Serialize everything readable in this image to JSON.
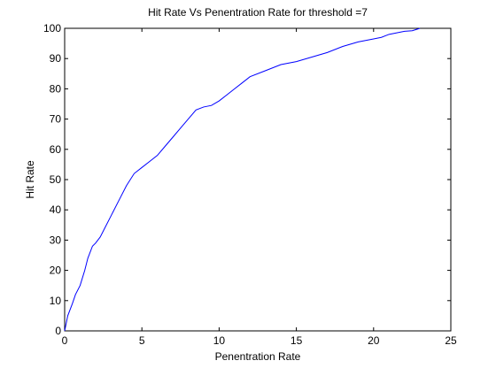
{
  "chart_data": {
    "type": "line",
    "title": "Hit Rate Vs Penentration Rate for threshold =7",
    "xlabel": "Penentration Rate",
    "ylabel": "Hit Rate",
    "xlim": [
      0,
      25
    ],
    "ylim": [
      0,
      100
    ],
    "xticks": [
      0,
      5,
      10,
      15,
      20,
      25
    ],
    "yticks": [
      0,
      10,
      20,
      30,
      40,
      50,
      60,
      70,
      80,
      90,
      100
    ],
    "xtick_labels": [
      "0",
      "5",
      "10",
      "15",
      "20",
      "25"
    ],
    "ytick_labels": [
      "0",
      "10",
      "20",
      "30",
      "40",
      "50",
      "60",
      "70",
      "80",
      "90",
      "100"
    ],
    "grid": false,
    "legend": "none",
    "line_color": "#0000ff",
    "x": [
      0,
      0.2,
      0.5,
      0.7,
      1.0,
      1.3,
      1.5,
      1.8,
      2.0,
      2.3,
      2.5,
      3.0,
      3.5,
      4.0,
      4.5,
      5.0,
      5.5,
      6.0,
      6.5,
      7.0,
      7.5,
      8.0,
      8.5,
      9.0,
      9.5,
      10.0,
      10.5,
      11.0,
      11.5,
      12.0,
      13.0,
      14.0,
      15.0,
      16.0,
      17.0,
      18.0,
      19.0,
      20.0,
      20.5,
      21.0,
      22.0,
      22.5,
      23.0
    ],
    "y": [
      0,
      5,
      9,
      12,
      15,
      20,
      24,
      28,
      29,
      31,
      33,
      38,
      43,
      48,
      52,
      54,
      56,
      58,
      61,
      64,
      67,
      70,
      73,
      74,
      74.5,
      76,
      78,
      80,
      82,
      84,
      86,
      88,
      89,
      90.5,
      92,
      94,
      95.5,
      96.5,
      97,
      98,
      99,
      99.2,
      100
    ]
  }
}
